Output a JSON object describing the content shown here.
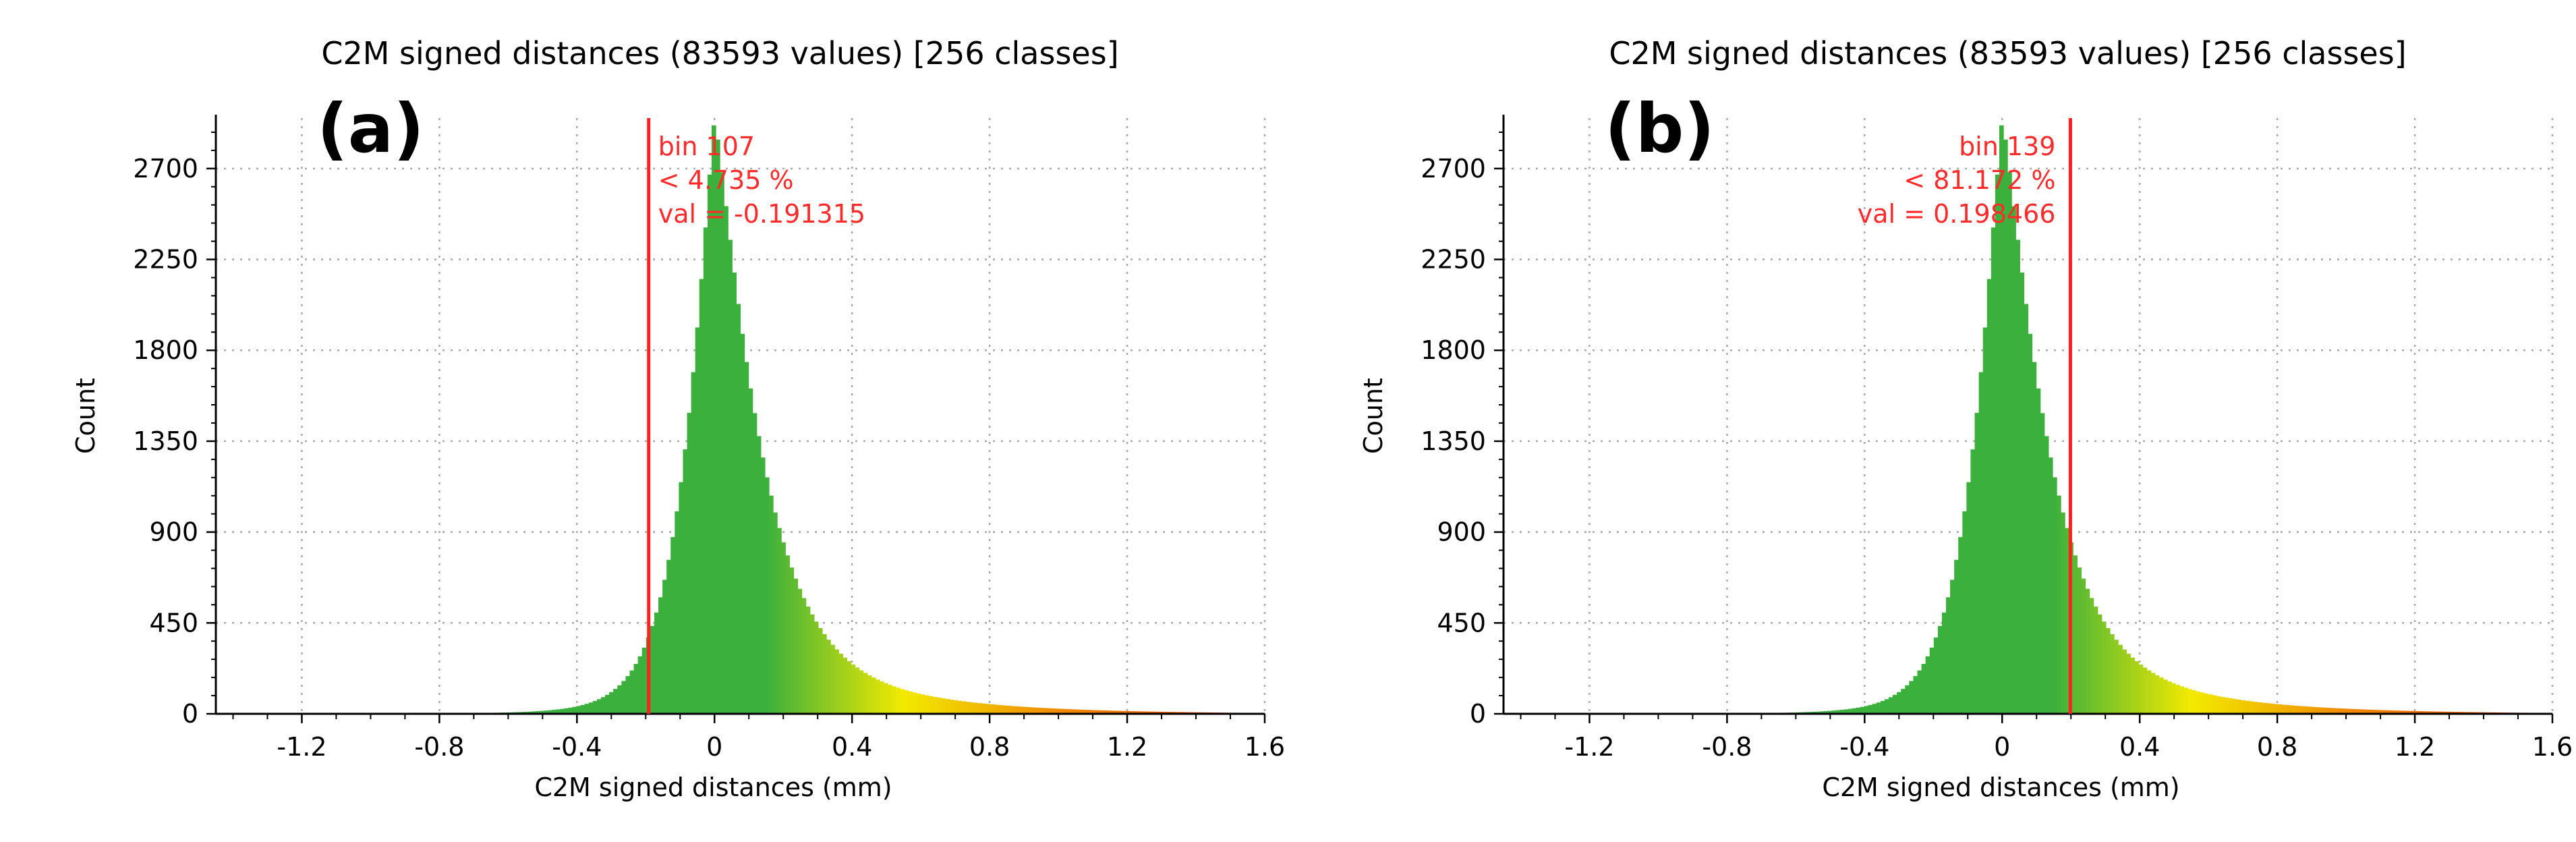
{
  "chart_data": [
    {
      "type": "bar",
      "panel_label": "(a)",
      "title": "C2M signed distances (83593 values)  [256 classes]",
      "xlabel": "C2M signed distances (mm)",
      "ylabel": "Count",
      "xlim": [
        -1.45,
        1.6
      ],
      "ylim": [
        0,
        2950
      ],
      "x_ticks": [
        -1.2,
        -0.8,
        -0.4,
        0,
        0.4,
        0.8,
        1.2,
        1.6
      ],
      "x_tick_labels": [
        "-1.2",
        "-0.8",
        "-0.4",
        "0",
        "0.4",
        "0.8",
        "1.2",
        "1.6"
      ],
      "y_ticks": [
        0,
        450,
        900,
        1350,
        1800,
        2250,
        2700
      ],
      "y_tick_labels": [
        "0",
        "450",
        "900",
        "1350",
        "1800",
        "2250",
        "2700"
      ],
      "grid": true,
      "peak": {
        "x": 0.0,
        "count": 2950
      },
      "marker": {
        "x": -0.191315,
        "lines": [
          "bin 107",
          "< 4.735 %",
          "val = -0.191315"
        ],
        "text_align": "left",
        "color": "#ff2020"
      }
    },
    {
      "type": "bar",
      "panel_label": "(b)",
      "title": "C2M signed distances (83593 values)  [256 classes]",
      "xlabel": "C2M signed distances (mm)",
      "ylabel": "Count",
      "xlim": [
        -1.45,
        1.6
      ],
      "ylim": [
        0,
        2950
      ],
      "x_ticks": [
        -1.2,
        -0.8,
        -0.4,
        0,
        0.4,
        0.8,
        1.2,
        1.6
      ],
      "x_tick_labels": [
        "-1.2",
        "-0.8",
        "-0.4",
        "0",
        "0.4",
        "0.8",
        "1.2",
        "1.6"
      ],
      "y_ticks": [
        0,
        450,
        900,
        1350,
        1800,
        2250,
        2700
      ],
      "y_tick_labels": [
        "0",
        "450",
        "900",
        "1350",
        "1800",
        "2250",
        "2700"
      ],
      "grid": true,
      "peak": {
        "x": 0.0,
        "count": 2950
      },
      "marker": {
        "x": 0.198466,
        "lines": [
          "bin 139",
          "< 81.172 %",
          "val = 0.198466"
        ],
        "text_align": "right",
        "color": "#ff2020"
      }
    }
  ],
  "colors": {
    "grid": "#a8a8a8",
    "axis": "#000000",
    "marker": "#ff2020",
    "ramp_green": "#3cb03c",
    "ramp_yellow": "#f2ea00",
    "ramp_orange": "#f08a00",
    "ramp_red": "#e83a10"
  }
}
